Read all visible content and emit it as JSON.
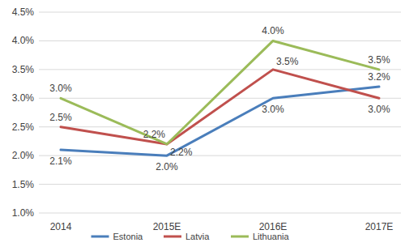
{
  "chart_data": {
    "type": "line",
    "categories": [
      "2014",
      "2015E",
      "2016E",
      "2017E"
    ],
    "ylim": [
      1.0,
      4.5
    ],
    "yticks": [
      {
        "value": 1.0,
        "label": "1.0%"
      },
      {
        "value": 1.5,
        "label": "1.5%"
      },
      {
        "value": 2.0,
        "label": "2.0%"
      },
      {
        "value": 2.5,
        "label": "2.5%"
      },
      {
        "value": 3.0,
        "label": "3.0%"
      },
      {
        "value": 3.5,
        "label": "3.5%"
      },
      {
        "value": 4.0,
        "label": "4.0%"
      },
      {
        "value": 4.5,
        "label": "4.5%"
      }
    ],
    "grid": true,
    "legend": "bottom",
    "data_labels": true,
    "series": [
      {
        "name": "Estonia",
        "color": "#4a7ebb",
        "values": [
          2.1,
          2.0,
          3.0,
          3.2
        ],
        "value_labels": [
          "2.1%",
          "2.0%",
          "3.0%",
          "3.2%"
        ]
      },
      {
        "name": "Latvia",
        "color": "#c0504d",
        "values": [
          2.5,
          2.2,
          3.5,
          3.0
        ],
        "value_labels": [
          "2.5%",
          "2.2%",
          "3.5%",
          "3.0%"
        ]
      },
      {
        "name": "Lithuania",
        "color": "#9bbb59",
        "values": [
          3.0,
          2.2,
          4.0,
          3.5
        ],
        "value_labels": [
          "3.0%",
          "2.2%",
          "4.0%",
          "3.5%"
        ]
      }
    ]
  }
}
